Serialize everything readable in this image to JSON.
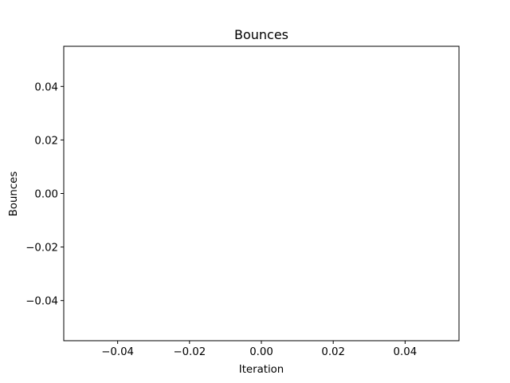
{
  "chart_data": {
    "type": "line",
    "title": "Bounces",
    "xlabel": "Iteration",
    "ylabel": "Bounces",
    "xlim": [
      -0.055,
      0.055
    ],
    "ylim": [
      -0.055,
      0.055
    ],
    "x_ticks": [
      -0.04,
      -0.02,
      0.0,
      0.02,
      0.04
    ],
    "x_tick_labels": [
      "−0.04",
      "−0.02",
      "0.00",
      "0.02",
      "0.04"
    ],
    "y_ticks": [
      -0.04,
      -0.02,
      0.0,
      0.02,
      0.04
    ],
    "y_tick_labels": [
      "−0.04",
      "−0.02",
      "0.00",
      "0.02",
      "0.04"
    ],
    "grid": false,
    "series": [
      {
        "x": [],
        "y": []
      }
    ]
  },
  "colors": {
    "background": "#ffffff",
    "axes": "#000000"
  }
}
